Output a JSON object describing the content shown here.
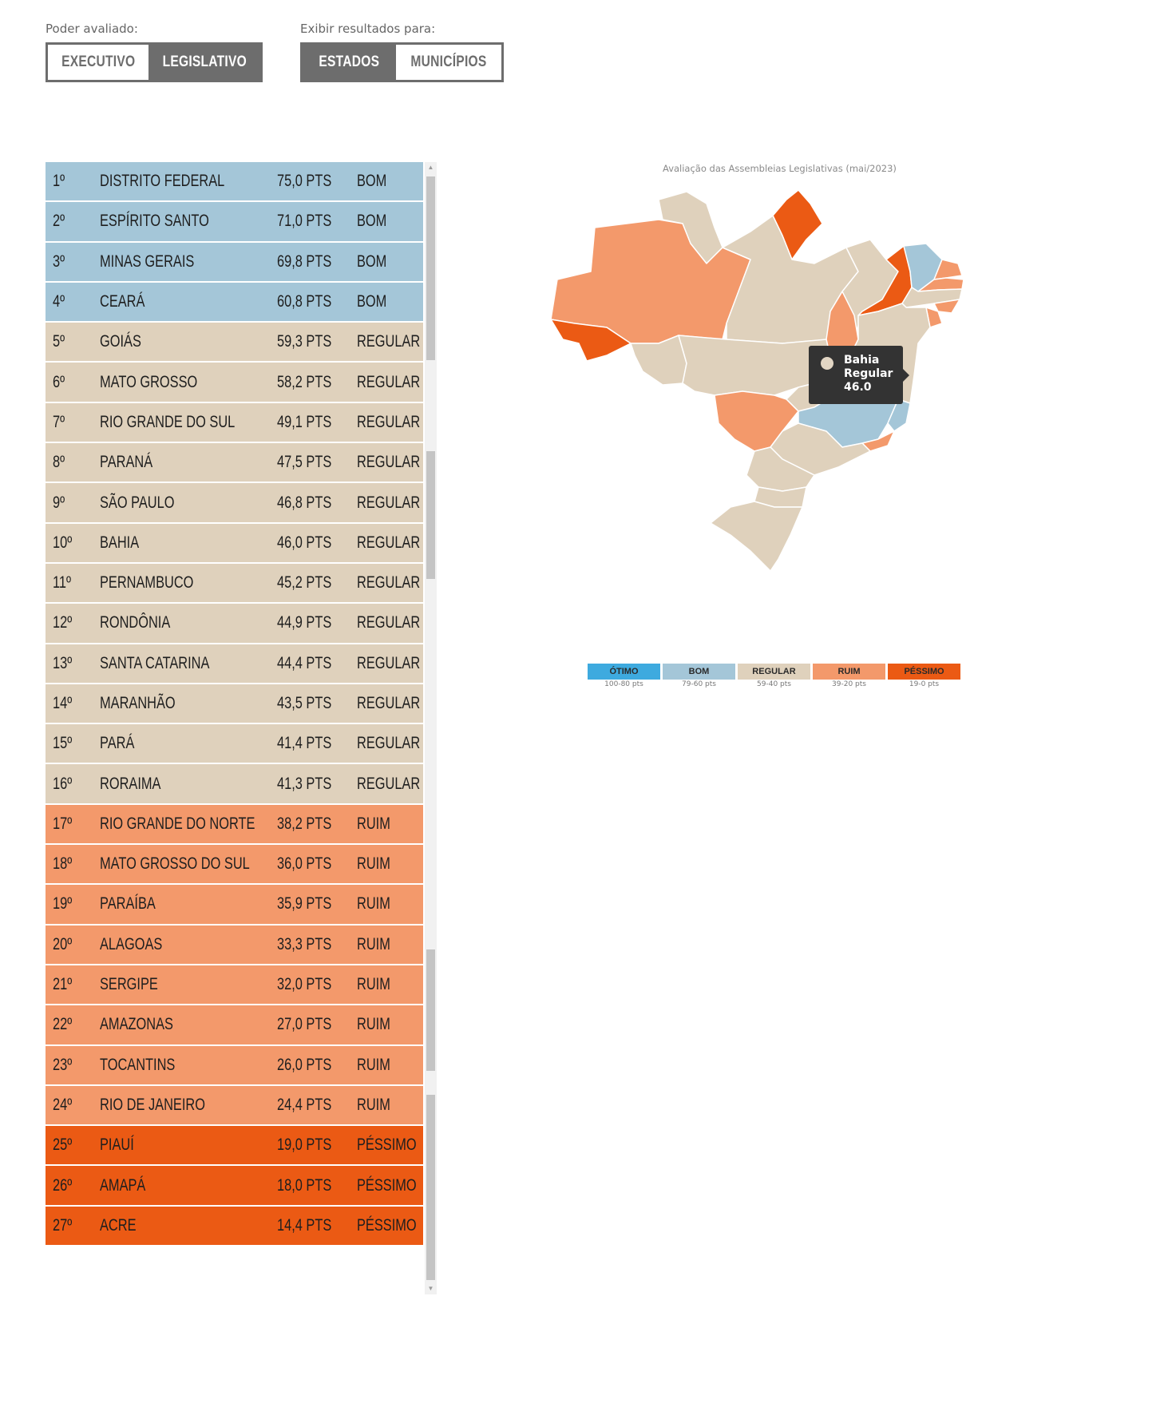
{
  "filters": {
    "poder": {
      "label": "Poder avaliado:",
      "options": [
        "EXECUTIVO",
        "LEGISLATIVO"
      ],
      "selected": "LEGISLATIVO"
    },
    "exibir": {
      "label": "Exibir resultados para:",
      "options": [
        "ESTADOS",
        "MUNICÍPIOS"
      ],
      "selected": "ESTADOS"
    }
  },
  "colors": {
    "otimo": "#3eaadf",
    "bom": "#a4c6d8",
    "regular": "#dfd1bc",
    "ruim": "#f3996b",
    "pessimo": "#eb5a14"
  },
  "ranking": [
    {
      "pos": "1º",
      "state": "DISTRITO FEDERAL",
      "pts": "75,0 PTS",
      "class": "BOM",
      "level": "bom"
    },
    {
      "pos": "2º",
      "state": "ESPÍRITO SANTO",
      "pts": "71,0 PTS",
      "class": "BOM",
      "level": "bom"
    },
    {
      "pos": "3º",
      "state": "MINAS GERAIS",
      "pts": "69,8 PTS",
      "class": "BOM",
      "level": "bom"
    },
    {
      "pos": "4º",
      "state": "CEARÁ",
      "pts": "60,8 PTS",
      "class": "BOM",
      "level": "bom"
    },
    {
      "pos": "5º",
      "state": "GOIÁS",
      "pts": "59,3 PTS",
      "class": "REGULAR",
      "level": "regular"
    },
    {
      "pos": "6º",
      "state": "MATO GROSSO",
      "pts": "58,2 PTS",
      "class": "REGULAR",
      "level": "regular"
    },
    {
      "pos": "7º",
      "state": "RIO GRANDE DO SUL",
      "pts": "49,1 PTS",
      "class": "REGULAR",
      "level": "regular"
    },
    {
      "pos": "8º",
      "state": "PARANÁ",
      "pts": "47,5 PTS",
      "class": "REGULAR",
      "level": "regular"
    },
    {
      "pos": "9º",
      "state": "SÃO PAULO",
      "pts": "46,8 PTS",
      "class": "REGULAR",
      "level": "regular"
    },
    {
      "pos": "10º",
      "state": "BAHIA",
      "pts": "46,0 PTS",
      "class": "REGULAR",
      "level": "regular"
    },
    {
      "pos": "11º",
      "state": "PERNAMBUCO",
      "pts": "45,2 PTS",
      "class": "REGULAR",
      "level": "regular"
    },
    {
      "pos": "12º",
      "state": "RONDÔNIA",
      "pts": "44,9 PTS",
      "class": "REGULAR",
      "level": "regular"
    },
    {
      "pos": "13º",
      "state": "SANTA CATARINA",
      "pts": "44,4 PTS",
      "class": "REGULAR",
      "level": "regular"
    },
    {
      "pos": "14º",
      "state": "MARANHÃO",
      "pts": "43,5 PTS",
      "class": "REGULAR",
      "level": "regular"
    },
    {
      "pos": "15º",
      "state": "PARÁ",
      "pts": "41,4 PTS",
      "class": "REGULAR",
      "level": "regular"
    },
    {
      "pos": "16º",
      "state": "RORAIMA",
      "pts": "41,3 PTS",
      "class": "REGULAR",
      "level": "regular"
    },
    {
      "pos": "17º",
      "state": "RIO GRANDE DO NORTE",
      "pts": "38,2 PTS",
      "class": "RUIM",
      "level": "ruim"
    },
    {
      "pos": "18º",
      "state": "MATO GROSSO DO SUL",
      "pts": "36,0 PTS",
      "class": "RUIM",
      "level": "ruim"
    },
    {
      "pos": "19º",
      "state": "PARAÍBA",
      "pts": "35,9 PTS",
      "class": "RUIM",
      "level": "ruim"
    },
    {
      "pos": "20º",
      "state": "ALAGOAS",
      "pts": "33,3 PTS",
      "class": "RUIM",
      "level": "ruim"
    },
    {
      "pos": "21º",
      "state": "SERGIPE",
      "pts": "32,0 PTS",
      "class": "RUIM",
      "level": "ruim"
    },
    {
      "pos": "22º",
      "state": "AMAZONAS",
      "pts": "27,0 PTS",
      "class": "RUIM",
      "level": "ruim"
    },
    {
      "pos": "23º",
      "state": "TOCANTINS",
      "pts": "26,0 PTS",
      "class": "RUIM",
      "level": "ruim"
    },
    {
      "pos": "24º",
      "state": "RIO DE JANEIRO",
      "pts": "24,4 PTS",
      "class": "RUIM",
      "level": "ruim"
    },
    {
      "pos": "25º",
      "state": "PIAUÍ",
      "pts": "19,0 PTS",
      "class": "PÉSSIMO",
      "level": "pessimo"
    },
    {
      "pos": "26º",
      "state": "AMAPÁ",
      "pts": "18,0 PTS",
      "class": "PÉSSIMO",
      "level": "pessimo"
    },
    {
      "pos": "27º",
      "state": "ACRE",
      "pts": "14,4 PTS",
      "class": "PÉSSIMO",
      "level": "pessimo"
    }
  ],
  "map": {
    "title": "Avaliação das Assembleias Legislativas (mai/2023)",
    "tooltip": {
      "state": "Bahia",
      "class": "Regular",
      "value": "46.0"
    }
  },
  "legend": [
    {
      "label": "ÓTIMO",
      "range": "100-80 pts",
      "level": "otimo"
    },
    {
      "label": "BOM",
      "range": "79-60 pts",
      "level": "bom"
    },
    {
      "label": "REGULAR",
      "range": "59-40 pts",
      "level": "regular"
    },
    {
      "label": "RUIM",
      "range": "39-20 pts",
      "level": "ruim"
    },
    {
      "label": "PÉSSIMO",
      "range": "19-0 pts",
      "level": "pessimo"
    }
  ]
}
